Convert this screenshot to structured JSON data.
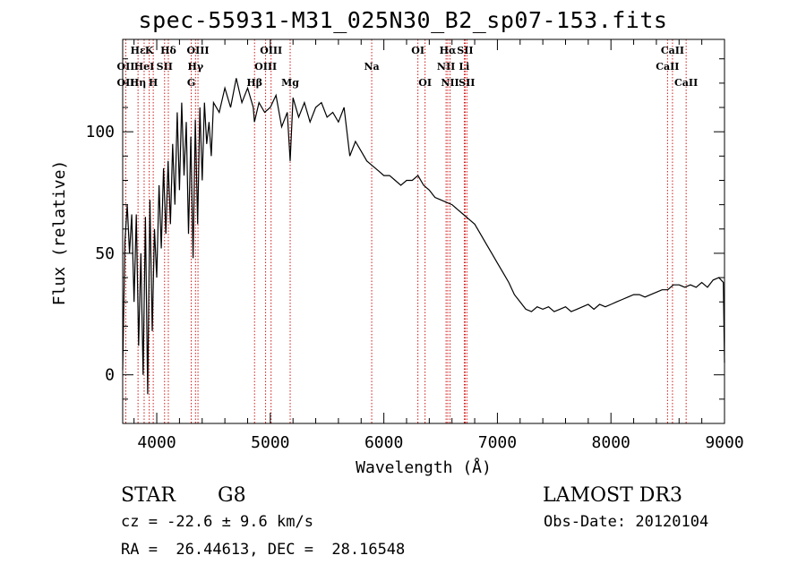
{
  "chart_data": {
    "type": "line",
    "title": "spec-55931-M31_025N30_B2_sp07-153.fits",
    "xlabel": "Wavelength (Å)",
    "ylabel": "Flux (relative)",
    "xlim": [
      3700,
      9000
    ],
    "ylim": [
      -20,
      138
    ],
    "xticks": [
      4000,
      5000,
      6000,
      7000,
      8000,
      9000
    ],
    "yticks": [
      0,
      50,
      100
    ],
    "series": [
      {
        "name": "flux",
        "x": [
          3700,
          3720,
          3740,
          3760,
          3780,
          3800,
          3820,
          3840,
          3860,
          3880,
          3900,
          3920,
          3940,
          3960,
          3980,
          4000,
          4020,
          4040,
          4060,
          4080,
          4100,
          4120,
          4140,
          4160,
          4180,
          4200,
          4220,
          4240,
          4260,
          4280,
          4300,
          4320,
          4340,
          4360,
          4380,
          4400,
          4420,
          4440,
          4460,
          4480,
          4500,
          4550,
          4600,
          4650,
          4700,
          4750,
          4800,
          4850,
          4860,
          4900,
          4950,
          5000,
          5050,
          5100,
          5150,
          5175,
          5200,
          5250,
          5300,
          5350,
          5400,
          5450,
          5500,
          5550,
          5600,
          5650,
          5700,
          5750,
          5800,
          5850,
          5900,
          5950,
          6000,
          6050,
          6100,
          6150,
          6200,
          6250,
          6300,
          6350,
          6400,
          6450,
          6500,
          6550,
          6600,
          6650,
          6700,
          6750,
          6800,
          6850,
          6900,
          6950,
          7000,
          7050,
          7100,
          7150,
          7200,
          7250,
          7300,
          7350,
          7400,
          7450,
          7500,
          7550,
          7600,
          7650,
          7700,
          7750,
          7800,
          7850,
          7900,
          7950,
          8000,
          8050,
          8100,
          8150,
          8200,
          8250,
          8300,
          8350,
          8400,
          8450,
          8500,
          8550,
          8600,
          8650,
          8700,
          8750,
          8800,
          8850,
          8900,
          8950,
          8990,
          9000
        ],
        "y": [
          2,
          55,
          70,
          50,
          66,
          30,
          66,
          12,
          50,
          0,
          65,
          -8,
          72,
          18,
          60,
          40,
          78,
          52,
          85,
          58,
          88,
          62,
          95,
          70,
          108,
          76,
          112,
          82,
          104,
          58,
          98,
          48,
          105,
          62,
          110,
          80,
          112,
          95,
          104,
          90,
          112,
          108,
          118,
          110,
          122,
          112,
          118,
          110,
          104,
          112,
          108,
          110,
          115,
          102,
          108,
          88,
          114,
          106,
          112,
          104,
          110,
          112,
          106,
          108,
          104,
          110,
          90,
          96,
          92,
          88,
          86,
          84,
          82,
          82,
          80,
          78,
          80,
          80,
          82,
          78,
          76,
          73,
          72,
          71,
          70,
          68,
          66,
          64,
          62,
          58,
          54,
          50,
          46,
          42,
          38,
          33,
          30,
          27,
          26,
          28,
          27,
          28,
          26,
          27,
          28,
          26,
          27,
          28,
          29,
          27,
          29,
          28,
          29,
          30,
          31,
          32,
          33,
          33,
          32,
          33,
          34,
          35,
          35,
          37,
          37,
          36,
          37,
          36,
          38,
          36,
          39,
          40,
          38,
          5
        ]
      }
    ],
    "lines": [
      {
        "label": "Hε",
        "x": 3835,
        "row": 0
      },
      {
        "label": "OII",
        "x": 3727,
        "row": 1
      },
      {
        "label": "OII",
        "x": 3727,
        "row": 2
      },
      {
        "label": "HeI",
        "x": 3889,
        "row": 1
      },
      {
        "label": "Hη",
        "x": 3835,
        "row": 2
      },
      {
        "label": "K",
        "x": 3934,
        "row": 0
      },
      {
        "label": "H",
        "x": 3969,
        "row": 2
      },
      {
        "label": "Hδ",
        "x": 4102,
        "row": 0
      },
      {
        "label": "SII",
        "x": 4069,
        "row": 1
      },
      {
        "label": "OIII",
        "x": 4363,
        "row": 0
      },
      {
        "label": "Hγ",
        "x": 4341,
        "row": 1
      },
      {
        "label": "G",
        "x": 4304,
        "row": 2
      },
      {
        "label": "Hβ",
        "x": 4861,
        "row": 2
      },
      {
        "label": "OIII",
        "x": 5007,
        "row": 0
      },
      {
        "label": "OIII",
        "x": 4959,
        "row": 1
      },
      {
        "label": "Mg",
        "x": 5175,
        "row": 2
      },
      {
        "label": "Na",
        "x": 5893,
        "row": 1
      },
      {
        "label": "OI",
        "x": 6300,
        "row": 0
      },
      {
        "label": "OI",
        "x": 6363,
        "row": 2
      },
      {
        "label": "Hα",
        "x": 6563,
        "row": 0
      },
      {
        "label": "NII",
        "x": 6548,
        "row": 1
      },
      {
        "label": "NII",
        "x": 6583,
        "row": 2
      },
      {
        "label": "SII",
        "x": 6716,
        "row": 0
      },
      {
        "label": "Li",
        "x": 6708,
        "row": 1
      },
      {
        "label": "SII",
        "x": 6731,
        "row": 2
      },
      {
        "label": "CaII",
        "x": 8542,
        "row": 0
      },
      {
        "label": "CaII",
        "x": 8498,
        "row": 1
      },
      {
        "label": "CaII",
        "x": 8662,
        "row": 2
      }
    ]
  },
  "info": {
    "class": "STAR",
    "subclass": "G8",
    "survey": "LAMOST DR3",
    "cz": "cz = -22.6 ± 9.6 km/s",
    "obsdate": "Obs-Date: 20120104",
    "coords": "RA =  26.44613, DEC =  28.16548"
  },
  "colors": {
    "line_marker": "#cc0000",
    "spectrum": "#000000"
  }
}
